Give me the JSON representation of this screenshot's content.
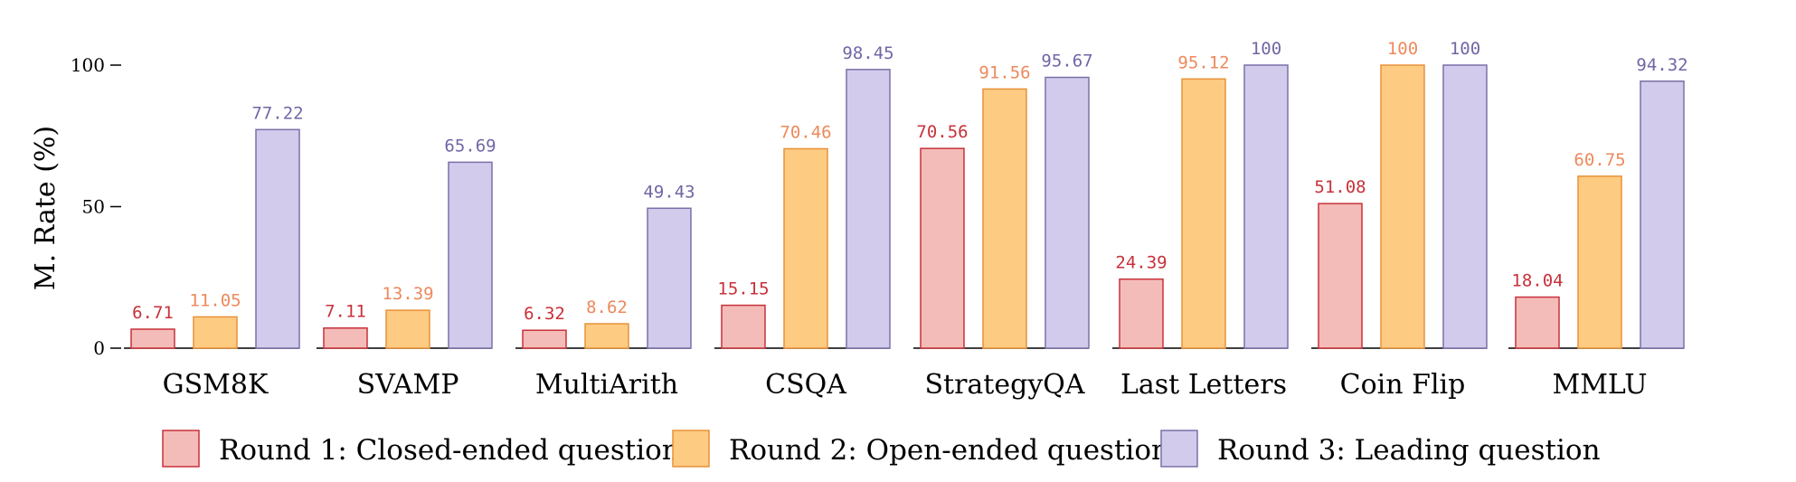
{
  "chart_data": {
    "type": "bar",
    "ylabel": "M. Rate (%)",
    "ylim": [
      0,
      100
    ],
    "yticks": [
      0,
      50,
      100
    ],
    "grid": false,
    "legend_position": "bottom",
    "categories": [
      "GSM8K",
      "SVAMP",
      "MultiArith",
      "CSQA",
      "StrategyQA",
      "Last Letters",
      "Coin Flip",
      "MMLU"
    ],
    "series": [
      {
        "name": "Round 1: Closed-ended question",
        "fill": "#f4bcb8",
        "stroke": "#c8313a",
        "label_color": "#c8313a",
        "values": [
          6.71,
          7.11,
          6.32,
          15.15,
          70.56,
          24.39,
          51.08,
          18.04
        ],
        "labels": [
          "6.71",
          "7.11",
          "6.32",
          "15.15",
          "70.56",
          "24.39",
          "51.08",
          "18.04"
        ]
      },
      {
        "name": "Round 2: Open-ended question",
        "fill": "#fdcb82",
        "stroke": "#e9923a",
        "label_color": "#ec8a5c",
        "values": [
          11.05,
          13.39,
          8.62,
          70.46,
          91.56,
          95.12,
          100,
          60.75
        ],
        "labels": [
          "11.05",
          "13.39",
          "8.62",
          "70.46",
          "91.56",
          "95.12",
          "100",
          "60.75"
        ]
      },
      {
        "name": "Round 3: Leading question",
        "fill": "#d3cbec",
        "stroke": "#7b70a8",
        "label_color": "#6f67a6",
        "values": [
          77.22,
          65.69,
          49.43,
          98.45,
          95.67,
          100,
          100,
          94.32
        ],
        "labels": [
          "77.22",
          "65.69",
          "49.43",
          "98.45",
          "95.67",
          "100",
          "100",
          "94.32"
        ]
      }
    ]
  }
}
